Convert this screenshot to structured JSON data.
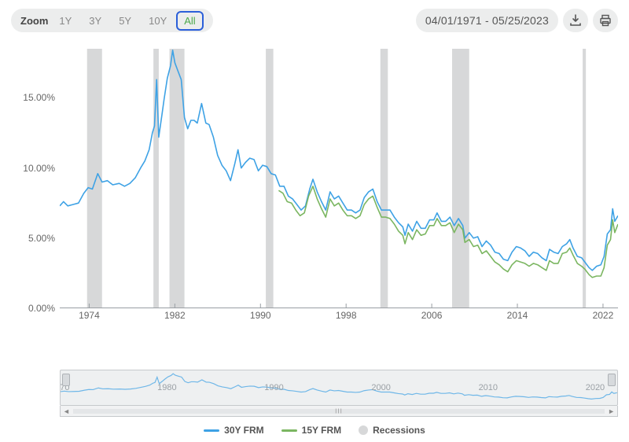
{
  "controls": {
    "zoom_label": "Zoom",
    "buttons": [
      "1Y",
      "3Y",
      "5Y",
      "10Y",
      "All"
    ],
    "active_index": 4,
    "date_range": "04/01/1971 - 05/25/2023"
  },
  "chart": {
    "type": "line",
    "background_color": "#ffffff",
    "axis_color": "#999ea3",
    "tick_color": "#666666",
    "x": {
      "min": 1971.25,
      "max": 2023.4,
      "tick_years": [
        1974,
        1982,
        1990,
        1998,
        2006,
        2014,
        2022
      ],
      "tick_fontsize": 12
    },
    "y": {
      "min": 0,
      "max": 18.5,
      "ticks": [
        0,
        5,
        10,
        15
      ],
      "fmt_suffix": ".00%",
      "tick_fontsize": 12
    },
    "recession_color": "#d7d8d9",
    "recessions": [
      [
        1973.8,
        1975.2
      ],
      [
        1980.0,
        1980.5
      ],
      [
        1981.5,
        1982.9
      ],
      [
        1990.5,
        1991.2
      ],
      [
        2001.2,
        2001.9
      ],
      [
        2007.9,
        2009.5
      ],
      [
        2020.1,
        2020.4
      ]
    ],
    "series": [
      {
        "name": "30Y FRM",
        "color": "#3ea2e5",
        "width": 1.6,
        "points": [
          [
            1971.25,
            7.3
          ],
          [
            1971.6,
            7.6
          ],
          [
            1972.0,
            7.3
          ],
          [
            1972.5,
            7.4
          ],
          [
            1973.0,
            7.5
          ],
          [
            1973.5,
            8.2
          ],
          [
            1973.9,
            8.6
          ],
          [
            1974.3,
            8.5
          ],
          [
            1974.8,
            9.6
          ],
          [
            1975.2,
            9.0
          ],
          [
            1975.7,
            9.1
          ],
          [
            1976.2,
            8.8
          ],
          [
            1976.8,
            8.9
          ],
          [
            1977.3,
            8.7
          ],
          [
            1977.8,
            8.9
          ],
          [
            1978.3,
            9.3
          ],
          [
            1978.8,
            10.0
          ],
          [
            1979.2,
            10.5
          ],
          [
            1979.6,
            11.3
          ],
          [
            1979.9,
            12.5
          ],
          [
            1980.1,
            13.0
          ],
          [
            1980.3,
            16.3
          ],
          [
            1980.5,
            12.2
          ],
          [
            1980.8,
            13.8
          ],
          [
            1981.0,
            14.9
          ],
          [
            1981.3,
            16.4
          ],
          [
            1981.6,
            17.3
          ],
          [
            1981.8,
            18.4
          ],
          [
            1982.0,
            17.5
          ],
          [
            1982.3,
            16.9
          ],
          [
            1982.6,
            16.3
          ],
          [
            1982.9,
            13.6
          ],
          [
            1983.2,
            12.8
          ],
          [
            1983.5,
            13.4
          ],
          [
            1983.8,
            13.4
          ],
          [
            1984.1,
            13.2
          ],
          [
            1984.5,
            14.6
          ],
          [
            1984.9,
            13.2
          ],
          [
            1985.2,
            13.1
          ],
          [
            1985.6,
            12.2
          ],
          [
            1986.0,
            10.9
          ],
          [
            1986.4,
            10.2
          ],
          [
            1986.8,
            9.8
          ],
          [
            1987.2,
            9.1
          ],
          [
            1987.6,
            10.3
          ],
          [
            1987.9,
            11.3
          ],
          [
            1988.2,
            10.0
          ],
          [
            1988.6,
            10.4
          ],
          [
            1989.0,
            10.7
          ],
          [
            1989.4,
            10.6
          ],
          [
            1989.8,
            9.8
          ],
          [
            1990.2,
            10.2
          ],
          [
            1990.6,
            10.1
          ],
          [
            1991.0,
            9.6
          ],
          [
            1991.4,
            9.5
          ],
          [
            1991.8,
            8.7
          ],
          [
            1992.2,
            8.7
          ],
          [
            1992.6,
            8.0
          ],
          [
            1993.0,
            7.8
          ],
          [
            1993.4,
            7.4
          ],
          [
            1993.8,
            7.0
          ],
          [
            1994.2,
            7.3
          ],
          [
            1994.6,
            8.5
          ],
          [
            1994.9,
            9.2
          ],
          [
            1995.3,
            8.3
          ],
          [
            1995.7,
            7.6
          ],
          [
            1996.1,
            7.0
          ],
          [
            1996.5,
            8.3
          ],
          [
            1996.9,
            7.8
          ],
          [
            1997.3,
            8.0
          ],
          [
            1997.7,
            7.5
          ],
          [
            1998.1,
            7.0
          ],
          [
            1998.5,
            7.0
          ],
          [
            1998.9,
            6.8
          ],
          [
            1999.3,
            7.0
          ],
          [
            1999.7,
            7.9
          ],
          [
            2000.1,
            8.3
          ],
          [
            2000.5,
            8.5
          ],
          [
            2000.9,
            7.6
          ],
          [
            2001.3,
            7.0
          ],
          [
            2001.7,
            7.0
          ],
          [
            2002.1,
            7.0
          ],
          [
            2002.5,
            6.5
          ],
          [
            2002.9,
            6.1
          ],
          [
            2003.3,
            5.8
          ],
          [
            2003.5,
            5.2
          ],
          [
            2003.8,
            6.0
          ],
          [
            2004.2,
            5.5
          ],
          [
            2004.6,
            6.2
          ],
          [
            2005.0,
            5.7
          ],
          [
            2005.4,
            5.7
          ],
          [
            2005.8,
            6.3
          ],
          [
            2006.2,
            6.3
          ],
          [
            2006.5,
            6.8
          ],
          [
            2006.9,
            6.2
          ],
          [
            2007.3,
            6.2
          ],
          [
            2007.7,
            6.5
          ],
          [
            2008.1,
            5.9
          ],
          [
            2008.5,
            6.4
          ],
          [
            2008.9,
            5.9
          ],
          [
            2009.1,
            5.0
          ],
          [
            2009.5,
            5.4
          ],
          [
            2009.9,
            5.0
          ],
          [
            2010.3,
            5.1
          ],
          [
            2010.7,
            4.4
          ],
          [
            2011.1,
            4.8
          ],
          [
            2011.5,
            4.5
          ],
          [
            2011.9,
            4.0
          ],
          [
            2012.3,
            3.9
          ],
          [
            2012.7,
            3.5
          ],
          [
            2013.1,
            3.4
          ],
          [
            2013.5,
            4.0
          ],
          [
            2013.9,
            4.4
          ],
          [
            2014.3,
            4.3
          ],
          [
            2014.7,
            4.1
          ],
          [
            2015.1,
            3.7
          ],
          [
            2015.5,
            4.0
          ],
          [
            2015.9,
            3.9
          ],
          [
            2016.3,
            3.6
          ],
          [
            2016.7,
            3.4
          ],
          [
            2017.0,
            4.2
          ],
          [
            2017.4,
            4.0
          ],
          [
            2017.8,
            3.9
          ],
          [
            2018.2,
            4.4
          ],
          [
            2018.6,
            4.6
          ],
          [
            2018.9,
            4.9
          ],
          [
            2019.2,
            4.3
          ],
          [
            2019.6,
            3.7
          ],
          [
            2020.0,
            3.6
          ],
          [
            2020.3,
            3.3
          ],
          [
            2020.7,
            2.9
          ],
          [
            2021.0,
            2.7
          ],
          [
            2021.4,
            3.0
          ],
          [
            2021.8,
            3.1
          ],
          [
            2022.1,
            3.7
          ],
          [
            2022.4,
            5.3
          ],
          [
            2022.7,
            5.6
          ],
          [
            2022.9,
            7.1
          ],
          [
            2023.1,
            6.2
          ],
          [
            2023.4,
            6.6
          ]
        ]
      },
      {
        "name": "15Y FRM",
        "color": "#7bb661",
        "width": 1.6,
        "points": [
          [
            1991.7,
            8.4
          ],
          [
            1992.1,
            8.2
          ],
          [
            1992.5,
            7.6
          ],
          [
            1992.9,
            7.5
          ],
          [
            1993.3,
            7.0
          ],
          [
            1993.7,
            6.6
          ],
          [
            1994.1,
            6.8
          ],
          [
            1994.5,
            8.0
          ],
          [
            1994.9,
            8.7
          ],
          [
            1995.3,
            7.8
          ],
          [
            1995.7,
            7.1
          ],
          [
            1996.1,
            6.5
          ],
          [
            1996.5,
            7.8
          ],
          [
            1996.9,
            7.3
          ],
          [
            1997.3,
            7.5
          ],
          [
            1997.7,
            7.0
          ],
          [
            1998.1,
            6.6
          ],
          [
            1998.5,
            6.6
          ],
          [
            1998.9,
            6.4
          ],
          [
            1999.3,
            6.6
          ],
          [
            1999.7,
            7.4
          ],
          [
            2000.1,
            7.8
          ],
          [
            2000.5,
            8.0
          ],
          [
            2000.9,
            7.2
          ],
          [
            2001.3,
            6.5
          ],
          [
            2001.7,
            6.5
          ],
          [
            2002.1,
            6.4
          ],
          [
            2002.5,
            6.0
          ],
          [
            2002.9,
            5.5
          ],
          [
            2003.3,
            5.2
          ],
          [
            2003.5,
            4.6
          ],
          [
            2003.8,
            5.4
          ],
          [
            2004.2,
            4.9
          ],
          [
            2004.6,
            5.6
          ],
          [
            2005.0,
            5.2
          ],
          [
            2005.4,
            5.3
          ],
          [
            2005.8,
            5.9
          ],
          [
            2006.2,
            5.9
          ],
          [
            2006.5,
            6.4
          ],
          [
            2006.9,
            5.9
          ],
          [
            2007.3,
            5.9
          ],
          [
            2007.7,
            6.1
          ],
          [
            2008.1,
            5.4
          ],
          [
            2008.5,
            6.0
          ],
          [
            2008.9,
            5.6
          ],
          [
            2009.1,
            4.7
          ],
          [
            2009.5,
            4.9
          ],
          [
            2009.9,
            4.4
          ],
          [
            2010.3,
            4.5
          ],
          [
            2010.7,
            3.9
          ],
          [
            2011.1,
            4.1
          ],
          [
            2011.5,
            3.7
          ],
          [
            2011.9,
            3.3
          ],
          [
            2012.3,
            3.1
          ],
          [
            2012.7,
            2.8
          ],
          [
            2013.1,
            2.6
          ],
          [
            2013.5,
            3.1
          ],
          [
            2013.9,
            3.4
          ],
          [
            2014.3,
            3.3
          ],
          [
            2014.7,
            3.2
          ],
          [
            2015.1,
            3.0
          ],
          [
            2015.5,
            3.2
          ],
          [
            2015.9,
            3.1
          ],
          [
            2016.3,
            2.9
          ],
          [
            2016.7,
            2.7
          ],
          [
            2017.0,
            3.4
          ],
          [
            2017.4,
            3.2
          ],
          [
            2017.8,
            3.2
          ],
          [
            2018.2,
            3.9
          ],
          [
            2018.6,
            4.0
          ],
          [
            2018.9,
            4.3
          ],
          [
            2019.2,
            3.8
          ],
          [
            2019.6,
            3.2
          ],
          [
            2020.0,
            3.0
          ],
          [
            2020.3,
            2.8
          ],
          [
            2020.7,
            2.4
          ],
          [
            2021.0,
            2.2
          ],
          [
            2021.4,
            2.3
          ],
          [
            2021.8,
            2.3
          ],
          [
            2022.1,
            2.9
          ],
          [
            2022.4,
            4.5
          ],
          [
            2022.7,
            4.9
          ],
          [
            2022.9,
            6.3
          ],
          [
            2023.1,
            5.4
          ],
          [
            2023.4,
            6.0
          ]
        ]
      }
    ]
  },
  "navigator": {
    "tick_years": [
      1970,
      1980,
      1990,
      2000,
      2010,
      2020
    ],
    "line_color": "#6fb7e8",
    "bg": "#eef0f1"
  },
  "legend": {
    "items": [
      {
        "kind": "line",
        "label": "30Y FRM",
        "color": "#3ea2e5"
      },
      {
        "kind": "line",
        "label": "15Y FRM",
        "color": "#7bb661"
      },
      {
        "kind": "circle",
        "label": "Recessions",
        "color": "#d7d8d9"
      }
    ]
  }
}
